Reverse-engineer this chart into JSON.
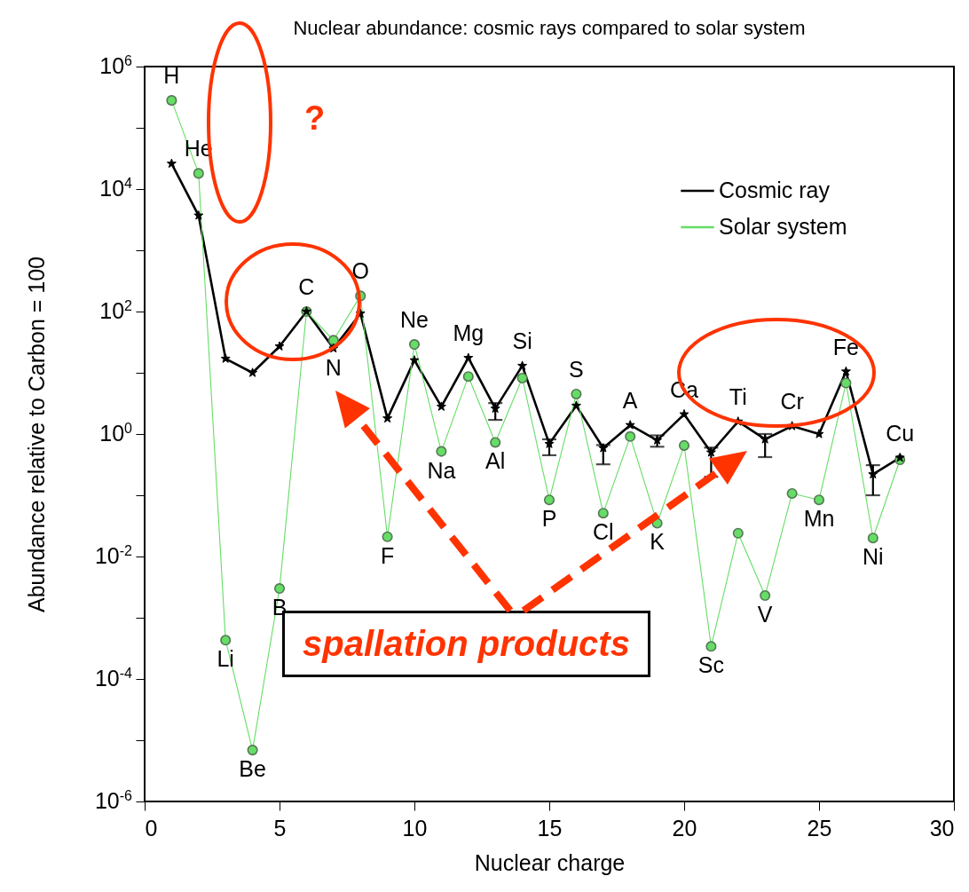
{
  "chart_data": {
    "type": "line",
    "title": "Nuclear abundance: cosmic rays compared to solar system",
    "xlabel": "Nuclear charge",
    "ylabel": "Abundance relative to Carbon = 100",
    "x": [
      1,
      2,
      3,
      4,
      5,
      6,
      7,
      8,
      9,
      10,
      11,
      12,
      13,
      14,
      15,
      16,
      17,
      18,
      19,
      20,
      21,
      22,
      23,
      24,
      25,
      26,
      27,
      28
    ],
    "series": [
      {
        "name": "Cosmic ray",
        "color": "#000000",
        "marker": "star",
        "values": [
          26000,
          3700,
          17,
          10,
          27,
          100,
          25,
          93,
          1.8,
          16,
          2.8,
          17.5,
          2.6,
          13,
          0.69,
          2.9,
          0.59,
          1.4,
          0.79,
          2.1,
          0.5,
          1.6,
          0.82,
          1.35,
          1.0,
          10.5,
          0.22,
          0.41
        ],
        "errors": [
          null,
          null,
          null,
          null,
          null,
          null,
          null,
          null,
          null,
          null,
          null,
          null,
          [
            1.7,
            3.2
          ],
          null,
          [
            0.45,
            0.82
          ],
          null,
          [
            0.32,
            0.66
          ],
          null,
          [
            0.62,
            0.95
          ],
          null,
          [
            0.2,
            0.6
          ],
          null,
          [
            0.42,
            1.0
          ],
          null,
          null,
          null,
          [
            0.1,
            0.31
          ],
          null
        ]
      },
      {
        "name": "Solar system",
        "color": "#66dd66",
        "marker": "circle",
        "values": [
          280000,
          18000,
          0.00043,
          6.9e-06,
          0.003,
          100,
          34,
          180,
          0.021,
          29,
          0.52,
          8.7,
          0.73,
          8.2,
          0.084,
          4.5,
          0.051,
          0.91,
          0.035,
          0.65,
          0.00034,
          0.024,
          0.0023,
          0.107,
          0.084,
          6.8,
          0.02,
          0.38
        ]
      }
    ],
    "xlim": [
      0,
      30
    ],
    "xticks": [
      0,
      5,
      10,
      15,
      20,
      25,
      30
    ],
    "ylim": [
      1e-06,
      1000000
    ],
    "log": true,
    "yticks": [
      {
        "value": 1e-06,
        "label": "10$^{-6}$"
      },
      {
        "value": 1e-05,
        "label": null
      },
      {
        "value": 0.0001,
        "label": "10$^{-4}$"
      },
      {
        "value": 0.001,
        "label": null
      },
      {
        "value": 0.01,
        "label": "10$^{-2}$"
      },
      {
        "value": 0.1,
        "label": null
      },
      {
        "value": 1,
        "label": "10$^{0}$"
      },
      {
        "value": 10,
        "label": null
      },
      {
        "value": 100,
        "label": "10$^{2}$"
      },
      {
        "value": 1000,
        "label": null
      },
      {
        "value": 10000,
        "label": "10$^{4}$"
      },
      {
        "value": 100000,
        "label": null
      },
      {
        "value": 1000000,
        "label": "10$^{6}$"
      }
    ],
    "grid": false,
    "legend": "top right",
    "line_style": "solid",
    "annotations": [
      "?",
      "spallation products",
      {
        "text": "H",
        "x": 1,
        "y": 280000
      },
      {
        "text": "He",
        "x": 2,
        "y": 18000
      },
      {
        "text": "Li",
        "x": 3,
        "y": 0.00043
      },
      {
        "text": "Be",
        "x": 4,
        "y": 6.9e-06
      },
      {
        "text": "B",
        "x": 5,
        "y": 0.003
      },
      {
        "text": "C",
        "x": 6,
        "y": 100
      },
      {
        "text": "N",
        "x": 7,
        "y": 25
      },
      {
        "text": "O",
        "x": 8,
        "y": 180
      },
      {
        "text": "F",
        "x": 9,
        "y": 0.021
      },
      {
        "text": "Ne",
        "x": 10,
        "y": 29
      },
      {
        "text": "Na",
        "x": 11,
        "y": 0.52
      },
      {
        "text": "Mg",
        "x": 12,
        "y": 17.5
      },
      {
        "text": "Al",
        "x": 13,
        "y": 0.73
      },
      {
        "text": "Si",
        "x": 14,
        "y": 13
      },
      {
        "text": "P",
        "x": 15,
        "y": 0.084
      },
      {
        "text": "S",
        "x": 16,
        "y": 4.5
      },
      {
        "text": "Cl",
        "x": 17,
        "y": 0.051
      },
      {
        "text": "A",
        "x": 18,
        "y": 1.4
      },
      {
        "text": "K",
        "x": 19,
        "y": 0.035
      },
      {
        "text": "Ca",
        "x": 20,
        "y": 2.1
      },
      {
        "text": "Sc",
        "x": 21,
        "y": 0.00034
      },
      {
        "text": "Ti",
        "x": 22,
        "y": 1.6
      },
      {
        "text": "V",
        "x": 23,
        "y": 0.0023
      },
      {
        "text": "Cr",
        "x": 24,
        "y": 1.35
      },
      {
        "text": "Mn",
        "x": 25,
        "y": 0.084
      },
      {
        "text": "Fe",
        "x": 26,
        "y": 10.5
      },
      {
        "text": "Ni",
        "x": 27,
        "y": 0.02
      },
      {
        "text": "Cu",
        "x": 28,
        "y": 0.41
      }
    ]
  }
}
